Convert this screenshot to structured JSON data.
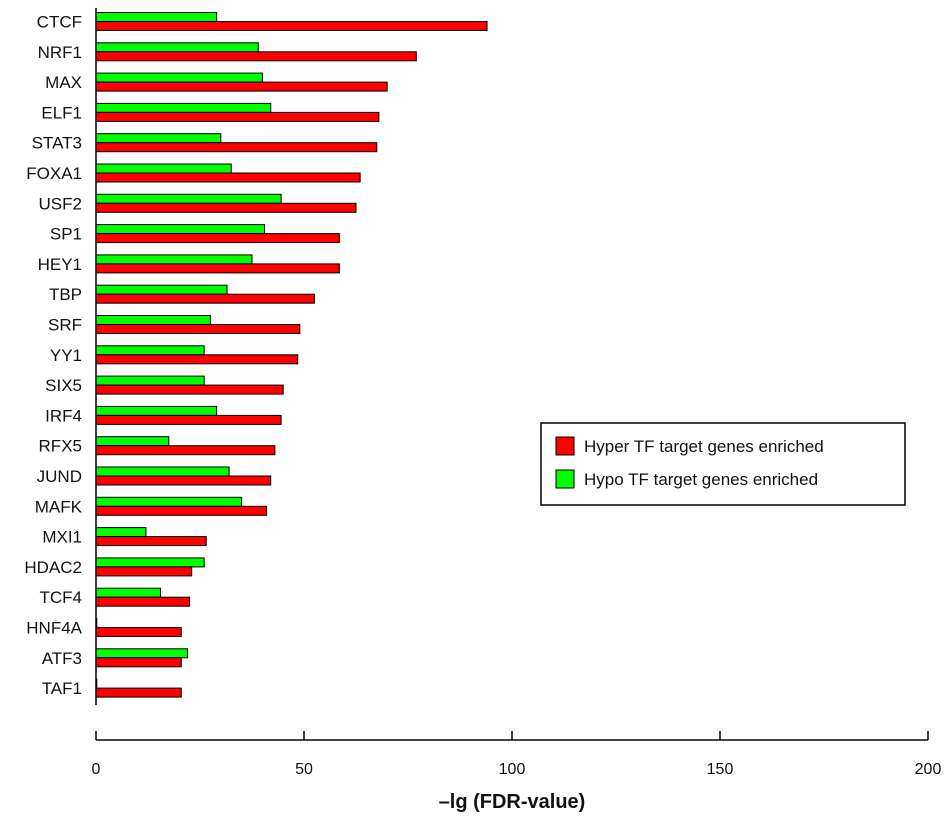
{
  "chart_data": {
    "type": "bar",
    "orientation": "horizontal",
    "categories": [
      "CTCF",
      "NRF1",
      "MAX",
      "ELF1",
      "STAT3",
      "FOXA1",
      "USF2",
      "SP1",
      "HEY1",
      "TBP",
      "SRF",
      "YY1",
      "SIX5",
      "IRF4",
      "RFX5",
      "JUND",
      "MAFK",
      "MXI1",
      "HDAC2",
      "TCF4",
      "HNF4A",
      "ATF3",
      "TAF1"
    ],
    "series": [
      {
        "name": "Hypo TF target genes enriched",
        "color": "#00ff00",
        "values": [
          29,
          39,
          40,
          42,
          30,
          32.5,
          44.5,
          40.5,
          37.5,
          31.5,
          27.5,
          26,
          26,
          29,
          17.5,
          32,
          35,
          12,
          26,
          15.5,
          0,
          22,
          0
        ]
      },
      {
        "name": "Hyper TF target genes enriched",
        "color": "#ff0000",
        "values": [
          94,
          77,
          70,
          68,
          67.5,
          63.5,
          62.5,
          58.5,
          58.5,
          52.5,
          49,
          48.5,
          45,
          44.5,
          43,
          42,
          41,
          26.5,
          23,
          22.5,
          20.5,
          20.5,
          20.5
        ]
      }
    ],
    "xlabel": "–lg (FDR-value)",
    "ylabel": "",
    "xlim": [
      0,
      200
    ],
    "xticks": [
      "0",
      "50",
      "100",
      "150",
      "200"
    ],
    "grid": false,
    "legend": {
      "position": "right-middle",
      "entries": [
        "Hyper TF target genes enriched",
        "Hypo TF target genes enriched"
      ]
    }
  }
}
